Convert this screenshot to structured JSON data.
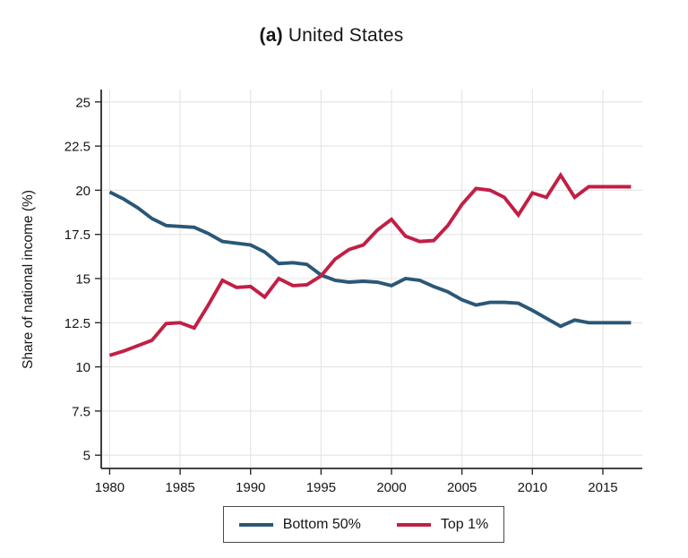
{
  "figure": {
    "title_prefix": "(a)",
    "title_main": "United States"
  },
  "chart_data": {
    "type": "line",
    "title": "(a) United States",
    "xlabel": "",
    "ylabel": "Share of national income (%)",
    "grid": true,
    "legend_position": "bottom",
    "xlim": [
      1979.4,
      2017.8
    ],
    "ylim": [
      4.25,
      25.7
    ],
    "x_ticks": [
      1980,
      1985,
      1990,
      1995,
      2000,
      2005,
      2010,
      2015
    ],
    "y_ticks": [
      5,
      7.5,
      10,
      12.5,
      15,
      17.5,
      20,
      22.5,
      25
    ],
    "y_tick_labels": [
      "5",
      "7.5",
      "10",
      "12.5",
      "15",
      "17.5",
      "20",
      "22.5",
      "25"
    ],
    "x": [
      1980,
      1981,
      1982,
      1983,
      1984,
      1985,
      1986,
      1987,
      1988,
      1989,
      1990,
      1991,
      1992,
      1993,
      1994,
      1995,
      1996,
      1997,
      1998,
      1999,
      2000,
      2001,
      2002,
      2003,
      2004,
      2005,
      2006,
      2007,
      2008,
      2009,
      2010,
      2011,
      2012,
      2013,
      2014,
      2015,
      2016,
      2017
    ],
    "series": [
      {
        "name": "Bottom 50%",
        "color": "#2B5777",
        "values": [
          19.9,
          19.5,
          19.0,
          18.4,
          18.0,
          17.95,
          17.9,
          17.55,
          17.1,
          17.0,
          16.9,
          16.5,
          15.85,
          15.9,
          15.8,
          15.2,
          14.9,
          14.8,
          14.85,
          14.8,
          14.6,
          15.0,
          14.9,
          14.55,
          14.25,
          13.8,
          13.5,
          13.65,
          13.65,
          13.6,
          13.2,
          12.75,
          12.3,
          12.65,
          12.5,
          12.5,
          12.5,
          12.5
        ]
      },
      {
        "name": "Top 1%",
        "color": "#C21F45",
        "values": [
          10.65,
          10.9,
          11.2,
          11.5,
          12.45,
          12.5,
          12.2,
          13.5,
          14.9,
          14.5,
          14.55,
          13.95,
          15.0,
          14.6,
          14.65,
          15.15,
          16.1,
          16.65,
          16.9,
          17.75,
          18.35,
          17.4,
          17.1,
          17.15,
          18.0,
          19.2,
          20.1,
          20.0,
          19.6,
          18.6,
          19.85,
          19.6,
          20.85,
          19.6,
          20.2,
          20.2,
          20.2,
          20.2
        ]
      }
    ]
  }
}
